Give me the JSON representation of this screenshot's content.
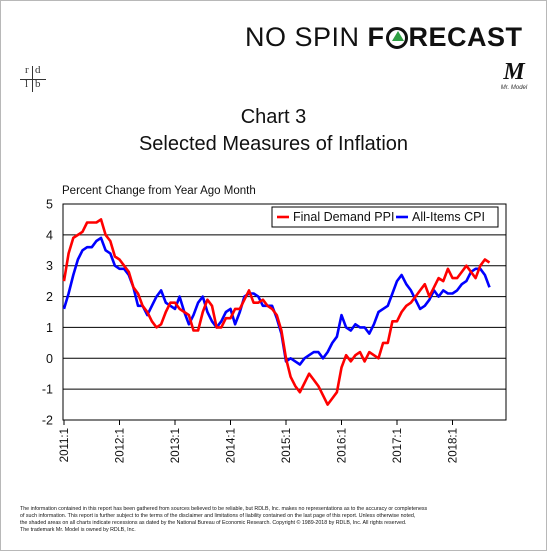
{
  "header": {
    "brand_part1": "NO SPIN ",
    "brand_part2_f": "F",
    "brand_part2_rest": "RECAST",
    "logo_rdlb": [
      "r",
      "d",
      "l",
      "b"
    ],
    "mrmodel_letter": "M",
    "mrmodel_caption": "Mr. Model"
  },
  "title_line1": "Chart 3",
  "title_line2": "Selected Measures of Inflation",
  "footer": {
    "line1": "The information contained in this report has been gathered from sources believed to be reliable, but RDLB, Inc. makes no representations as to the accuracy or completeness",
    "line2": "of such information. This report is further subject to the terms of the disclaimer and limitations of liability contained on the last page of this report. Unless otherwise noted,",
    "line3": "the shaded areas on all charts indicate recessions as dated by the National Bureau of Economic Research. Copyright © 1989-2018 by RDLB, Inc. All rights reserved.",
    "line4": "The trademark Mr. Model is owned by RDLB, Inc."
  },
  "colors": {
    "ppi": "#ff0000",
    "cpi": "#0000ff",
    "grid": "#000000"
  },
  "chart_data": {
    "type": "line",
    "title": "Chart 3 Selected Measures of Inflation",
    "ylabel": "Percent Change from Year Ago Month",
    "ylim": [
      -2,
      5
    ],
    "yticks": [
      "5",
      "4",
      "3",
      "2",
      "1",
      "0",
      "-1",
      "-2"
    ],
    "xticks": [
      "2011:1",
      "2012:1",
      "2013:1",
      "2014:1",
      "2015:1",
      "2016:1",
      "2017:1",
      "2018:1"
    ],
    "grid": "horizontal",
    "legend_position": "top-right",
    "x": [
      "2011:1",
      "2011:2",
      "2011:3",
      "2011:4",
      "2011:5",
      "2011:6",
      "2011:7",
      "2011:8",
      "2011:9",
      "2011:10",
      "2011:11",
      "2011:12",
      "2012:1",
      "2012:2",
      "2012:3",
      "2012:4",
      "2012:5",
      "2012:6",
      "2012:7",
      "2012:8",
      "2012:9",
      "2012:10",
      "2012:11",
      "2012:12",
      "2013:1",
      "2013:2",
      "2013:3",
      "2013:4",
      "2013:5",
      "2013:6",
      "2013:7",
      "2013:8",
      "2013:9",
      "2013:10",
      "2013:11",
      "2013:12",
      "2014:1",
      "2014:2",
      "2014:3",
      "2014:4",
      "2014:5",
      "2014:6",
      "2014:7",
      "2014:8",
      "2014:9",
      "2014:10",
      "2014:11",
      "2014:12",
      "2015:1",
      "2015:2",
      "2015:3",
      "2015:4",
      "2015:5",
      "2015:6",
      "2015:7",
      "2015:8",
      "2015:9",
      "2015:10",
      "2015:11",
      "2015:12",
      "2016:1",
      "2016:2",
      "2016:3",
      "2016:4",
      "2016:5",
      "2016:6",
      "2016:7",
      "2016:8",
      "2016:9",
      "2016:10",
      "2016:11",
      "2016:12",
      "2017:1",
      "2017:2",
      "2017:3",
      "2017:4",
      "2017:5",
      "2017:6",
      "2017:7",
      "2017:8",
      "2017:9",
      "2017:10",
      "2017:11",
      "2017:12",
      "2018:1",
      "2018:2",
      "2018:3",
      "2018:4",
      "2018:5",
      "2018:6",
      "2018:7",
      "2018:8",
      "2018:9"
    ],
    "series": [
      {
        "name": "Final Demand PPI",
        "color": "#ff0000",
        "values": [
          2.5,
          3.4,
          3.9,
          4.0,
          4.1,
          4.4,
          4.4,
          4.4,
          4.5,
          4.0,
          3.8,
          3.3,
          3.2,
          3.0,
          2.8,
          2.3,
          2.1,
          1.7,
          1.5,
          1.2,
          1.0,
          1.1,
          1.5,
          1.8,
          1.8,
          1.6,
          1.5,
          1.4,
          0.9,
          0.9,
          1.5,
          1.9,
          1.7,
          1.0,
          1.0,
          1.3,
          1.3,
          1.6,
          1.6,
          1.9,
          2.2,
          1.8,
          1.8,
          1.9,
          1.7,
          1.6,
          1.4,
          0.9,
          0.0,
          -0.6,
          -0.9,
          -1.1,
          -0.8,
          -0.5,
          -0.7,
          -0.9,
          -1.2,
          -1.5,
          -1.3,
          -1.1,
          -0.3,
          0.1,
          -0.1,
          0.1,
          0.2,
          -0.1,
          0.2,
          0.1,
          0.0,
          0.5,
          0.5,
          1.2,
          1.2,
          1.5,
          1.7,
          1.8,
          2.0,
          2.2,
          2.4,
          2.0,
          2.3,
          2.6,
          2.5,
          2.9,
          2.6,
          2.6,
          2.8,
          3.0,
          2.8,
          2.6,
          3.0,
          3.2,
          3.1
        ]
      },
      {
        "name": "All-Items CPI",
        "color": "#0000ff",
        "values": [
          1.6,
          2.1,
          2.7,
          3.2,
          3.5,
          3.6,
          3.6,
          3.8,
          3.9,
          3.5,
          3.4,
          3.0,
          2.9,
          2.9,
          2.7,
          2.3,
          1.7,
          1.7,
          1.4,
          1.7,
          2.0,
          2.2,
          1.8,
          1.7,
          1.6,
          2.0,
          1.5,
          1.1,
          1.4,
          1.8,
          2.0,
          1.5,
          1.2,
          1.0,
          1.2,
          1.5,
          1.6,
          1.1,
          1.5,
          2.0,
          2.1,
          2.1,
          2.0,
          1.7,
          1.7,
          1.7,
          1.3,
          0.8,
          -0.1,
          0.0,
          -0.1,
          -0.2,
          0.0,
          0.1,
          0.2,
          0.2,
          0.0,
          0.2,
          0.5,
          0.7,
          1.4,
          1.0,
          0.9,
          1.1,
          1.0,
          1.0,
          0.8,
          1.1,
          1.5,
          1.6,
          1.7,
          2.1,
          2.5,
          2.7,
          2.4,
          2.2,
          1.9,
          1.6,
          1.7,
          1.9,
          2.2,
          2.0,
          2.2,
          2.1,
          2.1,
          2.2,
          2.4,
          2.5,
          2.8,
          2.9,
          2.9,
          2.7,
          2.3
        ]
      }
    ]
  }
}
